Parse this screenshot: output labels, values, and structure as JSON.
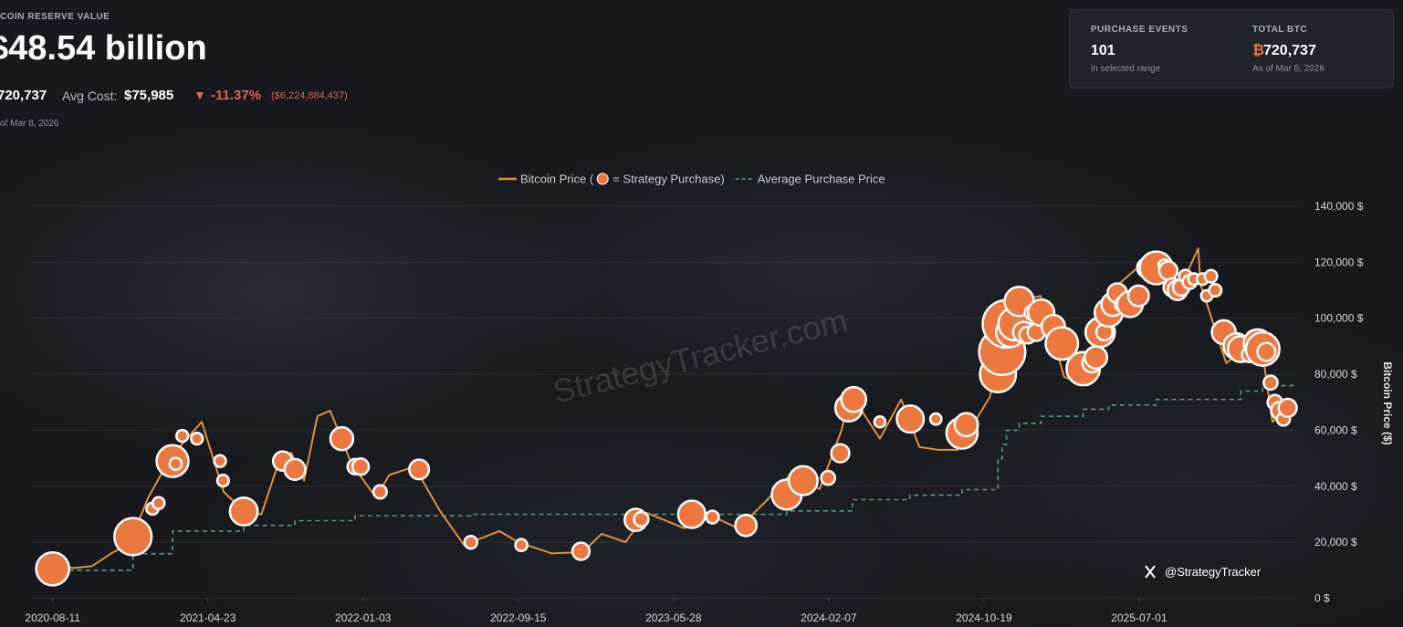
{
  "header": {
    "label": "COIN RESERVE VALUE",
    "value": "$48.54 billion",
    "btc": "720,737",
    "avg_cost_label": "Avg Cost:",
    "avg_cost": "$75,985",
    "change_arrow": "▼",
    "change_pct": "-11.37%",
    "change_usd": "($6,224,884,437)",
    "as_of": "of Mar 8, 2026"
  },
  "stats_card": {
    "events_label": "PURCHASE EVENTS",
    "events": "101",
    "events_sub": "in selected range",
    "total_label": "TOTAL BTC",
    "total_symbol": "₿",
    "total": "720,737",
    "total_sub": "As of Mar 8, 2026"
  },
  "chart_data": {
    "type": "line",
    "watermark": "StrategyTracker.com",
    "credit": "@StrategyTracker",
    "y_label": "Bitcoin Price ($)",
    "grid": true,
    "xlim": [
      "2020-07-08",
      "2026-03-16"
    ],
    "xticks": [
      "2020-08-11",
      "2021-04-23",
      "2022-01-03",
      "2022-09-15",
      "2023-05-28",
      "2024-02-07",
      "2024-10-19",
      "2025-07-01"
    ],
    "ylim": [
      0,
      140000
    ],
    "yticks": [
      {
        "value": 0,
        "label": "0 $"
      },
      {
        "value": 20000,
        "label": "20,000 $"
      },
      {
        "value": 40000,
        "label": "40,000 $"
      },
      {
        "value": 60000,
        "label": "60,000 $"
      },
      {
        "value": 80000,
        "label": "80,000 $"
      },
      {
        "value": 100000,
        "label": "100,000 $"
      },
      {
        "value": 120000,
        "label": "120,000 $"
      },
      {
        "value": 140000,
        "label": "140,000 $"
      }
    ],
    "series": [
      {
        "name": "Bitcoin Price (",
        "kind": "line",
        "color": "#e5903a",
        "x": [
          "2020-08-11",
          "2020-09-15",
          "2020-10-15",
          "2020-11-15",
          "2020-12-15",
          "2021-01-15",
          "2021-02-15",
          "2021-03-15",
          "2021-04-13",
          "2021-05-19",
          "2021-06-22",
          "2021-07-20",
          "2021-08-15",
          "2021-09-07",
          "2021-09-28",
          "2021-10-20",
          "2021-11-10",
          "2021-12-15",
          "2022-01-24",
          "2022-02-15",
          "2022-03-28",
          "2022-05-10",
          "2022-06-18",
          "2022-08-15",
          "2022-09-15",
          "2022-11-09",
          "2022-12-30",
          "2023-01-30",
          "2023-03-10",
          "2023-04-14",
          "2023-06-15",
          "2023-07-14",
          "2023-09-11",
          "2023-10-24",
          "2023-12-05",
          "2024-01-23",
          "2024-02-28",
          "2024-03-14",
          "2024-05-01",
          "2024-06-05",
          "2024-07-05",
          "2024-08-05",
          "2024-09-06",
          "2024-10-29",
          "2024-11-22",
          "2024-12-17",
          "2025-01-20",
          "2025-02-28",
          "2025-04-08",
          "2025-05-22",
          "2025-07-14",
          "2025-08-14",
          "2025-09-01",
          "2025-10-06",
          "2025-10-10",
          "2025-11-21",
          "2025-12-15",
          "2026-01-14",
          "2026-02-05",
          "2026-03-08"
        ],
        "values": [
          11500,
          10800,
          11500,
          16000,
          19500,
          36000,
          48000,
          56000,
          63000,
          38000,
          31000,
          30000,
          47000,
          52000,
          42000,
          65000,
          67000,
          48000,
          36000,
          44000,
          47000,
          31000,
          19000,
          24000,
          20000,
          16000,
          16500,
          23000,
          20000,
          30500,
          25000,
          31000,
          25000,
          34000,
          44000,
          39000,
          60000,
          73000,
          57000,
          71000,
          54000,
          53000,
          53000,
          72000,
          99000,
          106000,
          108000,
          79000,
          76000,
          111000,
          121000,
          123000,
          108000,
          125000,
          112000,
          84000,
          88000,
          96000,
          63000,
          68000
        ]
      },
      {
        "name": "= Strategy Purchase)",
        "kind": "bubble",
        "color": "#ec773f",
        "x": [
          "2020-08-11",
          "2020-12-21",
          "2021-01-22",
          "2021-02-01",
          "2021-02-24",
          "2021-03-01",
          "2021-03-12",
          "2021-04-05",
          "2021-05-13",
          "2021-05-18",
          "2021-06-21",
          "2021-08-24",
          "2021-09-13",
          "2021-11-29",
          "2021-12-21",
          "2021-12-30",
          "2022-01-31",
          "2022-04-05",
          "2022-06-29",
          "2022-09-20",
          "2022-12-27",
          "2023-03-27",
          "2023-04-05",
          "2023-06-27",
          "2023-07-31",
          "2023-09-24",
          "2023-11-30",
          "2023-12-27",
          "2024-02-06",
          "2024-02-26",
          "2024-03-11",
          "2024-03-19",
          "2024-05-01",
          "2024-06-20",
          "2024-08-01",
          "2024-09-13",
          "2024-09-20",
          "2024-11-11",
          "2024-11-18",
          "2024-11-25",
          "2024-12-02",
          "2024-12-09",
          "2024-12-16",
          "2024-12-23",
          "2024-12-30",
          "2025-01-06",
          "2025-01-13",
          "2025-01-21",
          "2025-02-10",
          "2025-02-24",
          "2025-03-17",
          "2025-03-31",
          "2025-04-14",
          "2025-04-21",
          "2025-04-28",
          "2025-05-05",
          "2025-05-12",
          "2025-05-19",
          "2025-05-26",
          "2025-06-02",
          "2025-06-09",
          "2025-06-16",
          "2025-06-30",
          "2025-07-14",
          "2025-07-29",
          "2025-08-11",
          "2025-08-18",
          "2025-08-25",
          "2025-09-02",
          "2025-09-08",
          "2025-09-15",
          "2025-09-22",
          "2025-09-29",
          "2025-10-13",
          "2025-10-20",
          "2025-10-27",
          "2025-11-03",
          "2025-11-17",
          "2025-12-01",
          "2025-12-08",
          "2025-12-15",
          "2025-12-29",
          "2026-01-05",
          "2026-01-12",
          "2026-01-20",
          "2026-01-26",
          "2026-02-02",
          "2026-02-09",
          "2026-02-17",
          "2026-02-23",
          "2026-03-02"
        ],
        "values": [
          10500,
          22000,
          32000,
          34000,
          49000,
          48000,
          58000,
          57000,
          49000,
          42000,
          31000,
          49000,
          46000,
          57000,
          47000,
          47000,
          38000,
          46000,
          20000,
          19000,
          16800,
          28000,
          28200,
          30000,
          29000,
          26000,
          37000,
          42000,
          43000,
          51800,
          68000,
          71000,
          63000,
          64000,
          64000,
          59000,
          62000,
          80000,
          88000,
          98000,
          95000,
          98000,
          106000,
          95000,
          94000,
          102000,
          95000,
          102000,
          97000,
          91000,
          83000,
          82000,
          84000,
          86000,
          95000,
          95000,
          102000,
          105000,
          109000,
          105000,
          106000,
          105000,
          108000,
          118000,
          118000,
          119000,
          117000,
          111000,
          110000,
          111000,
          115000,
          113000,
          114000,
          114000,
          108000,
          115000,
          110000,
          95000,
          92000,
          90000,
          89000,
          87000,
          93000,
          91000,
          89000,
          88000,
          77000,
          70000,
          67000,
          64000,
          68000
        ],
        "sizes": [
          21454,
          29646,
          314,
          295,
          19452,
          328,
          262,
          253,
          271,
          229,
          13005,
          3907,
          5050,
          7002,
          1434,
          1914,
          660,
          4167,
          480,
          301,
          2395,
          6455,
          1045,
          12333,
          467,
          5445,
          16130,
          14620,
          850,
          3000,
          12000,
          9245,
          122,
          11931,
          169,
          18300,
          7420,
          27200,
          51780,
          55500,
          15400,
          21550,
          15350,
          5262,
          2138,
          1070,
          2530,
          11000,
          7633,
          20356,
          130,
          22048,
          3459,
          6556,
          15355,
          1895,
          13390,
          7390,
          4020,
          705,
          1045,
          10100,
          4980,
          4225,
          21021,
          155,
          3081,
          3081,
          4048,
          1955,
          525,
          850,
          196,
          220,
          168,
          390,
          397,
          8178,
          130,
          10624,
          10645,
          1229,
          1287,
          13627,
          22305,
          2932,
          855,
          1142,
          2486,
          592,
          3015
        ]
      },
      {
        "name": "Average Purchase Price",
        "kind": "step",
        "dashed": true,
        "color": "#4f9e78",
        "x": [
          "2020-08-11",
          "2020-12-21",
          "2021-02-24",
          "2021-06-21",
          "2021-09-13",
          "2021-12-21",
          "2022-06-29",
          "2023-11-30",
          "2024-03-17",
          "2024-06-19",
          "2024-09-13",
          "2024-11-11",
          "2024-11-18",
          "2024-11-25",
          "2024-12-16",
          "2025-01-21",
          "2025-03-31",
          "2025-05-12",
          "2025-07-29",
          "2025-12-15",
          "2026-01-20",
          "2026-03-08"
        ],
        "values": [
          10000,
          15900,
          24000,
          26000,
          27700,
          29500,
          30000,
          31200,
          35200,
          36800,
          38800,
          49900,
          55000,
          60000,
          62500,
          65000,
          67500,
          69000,
          71000,
          74000,
          75900,
          76000
        ]
      }
    ]
  }
}
